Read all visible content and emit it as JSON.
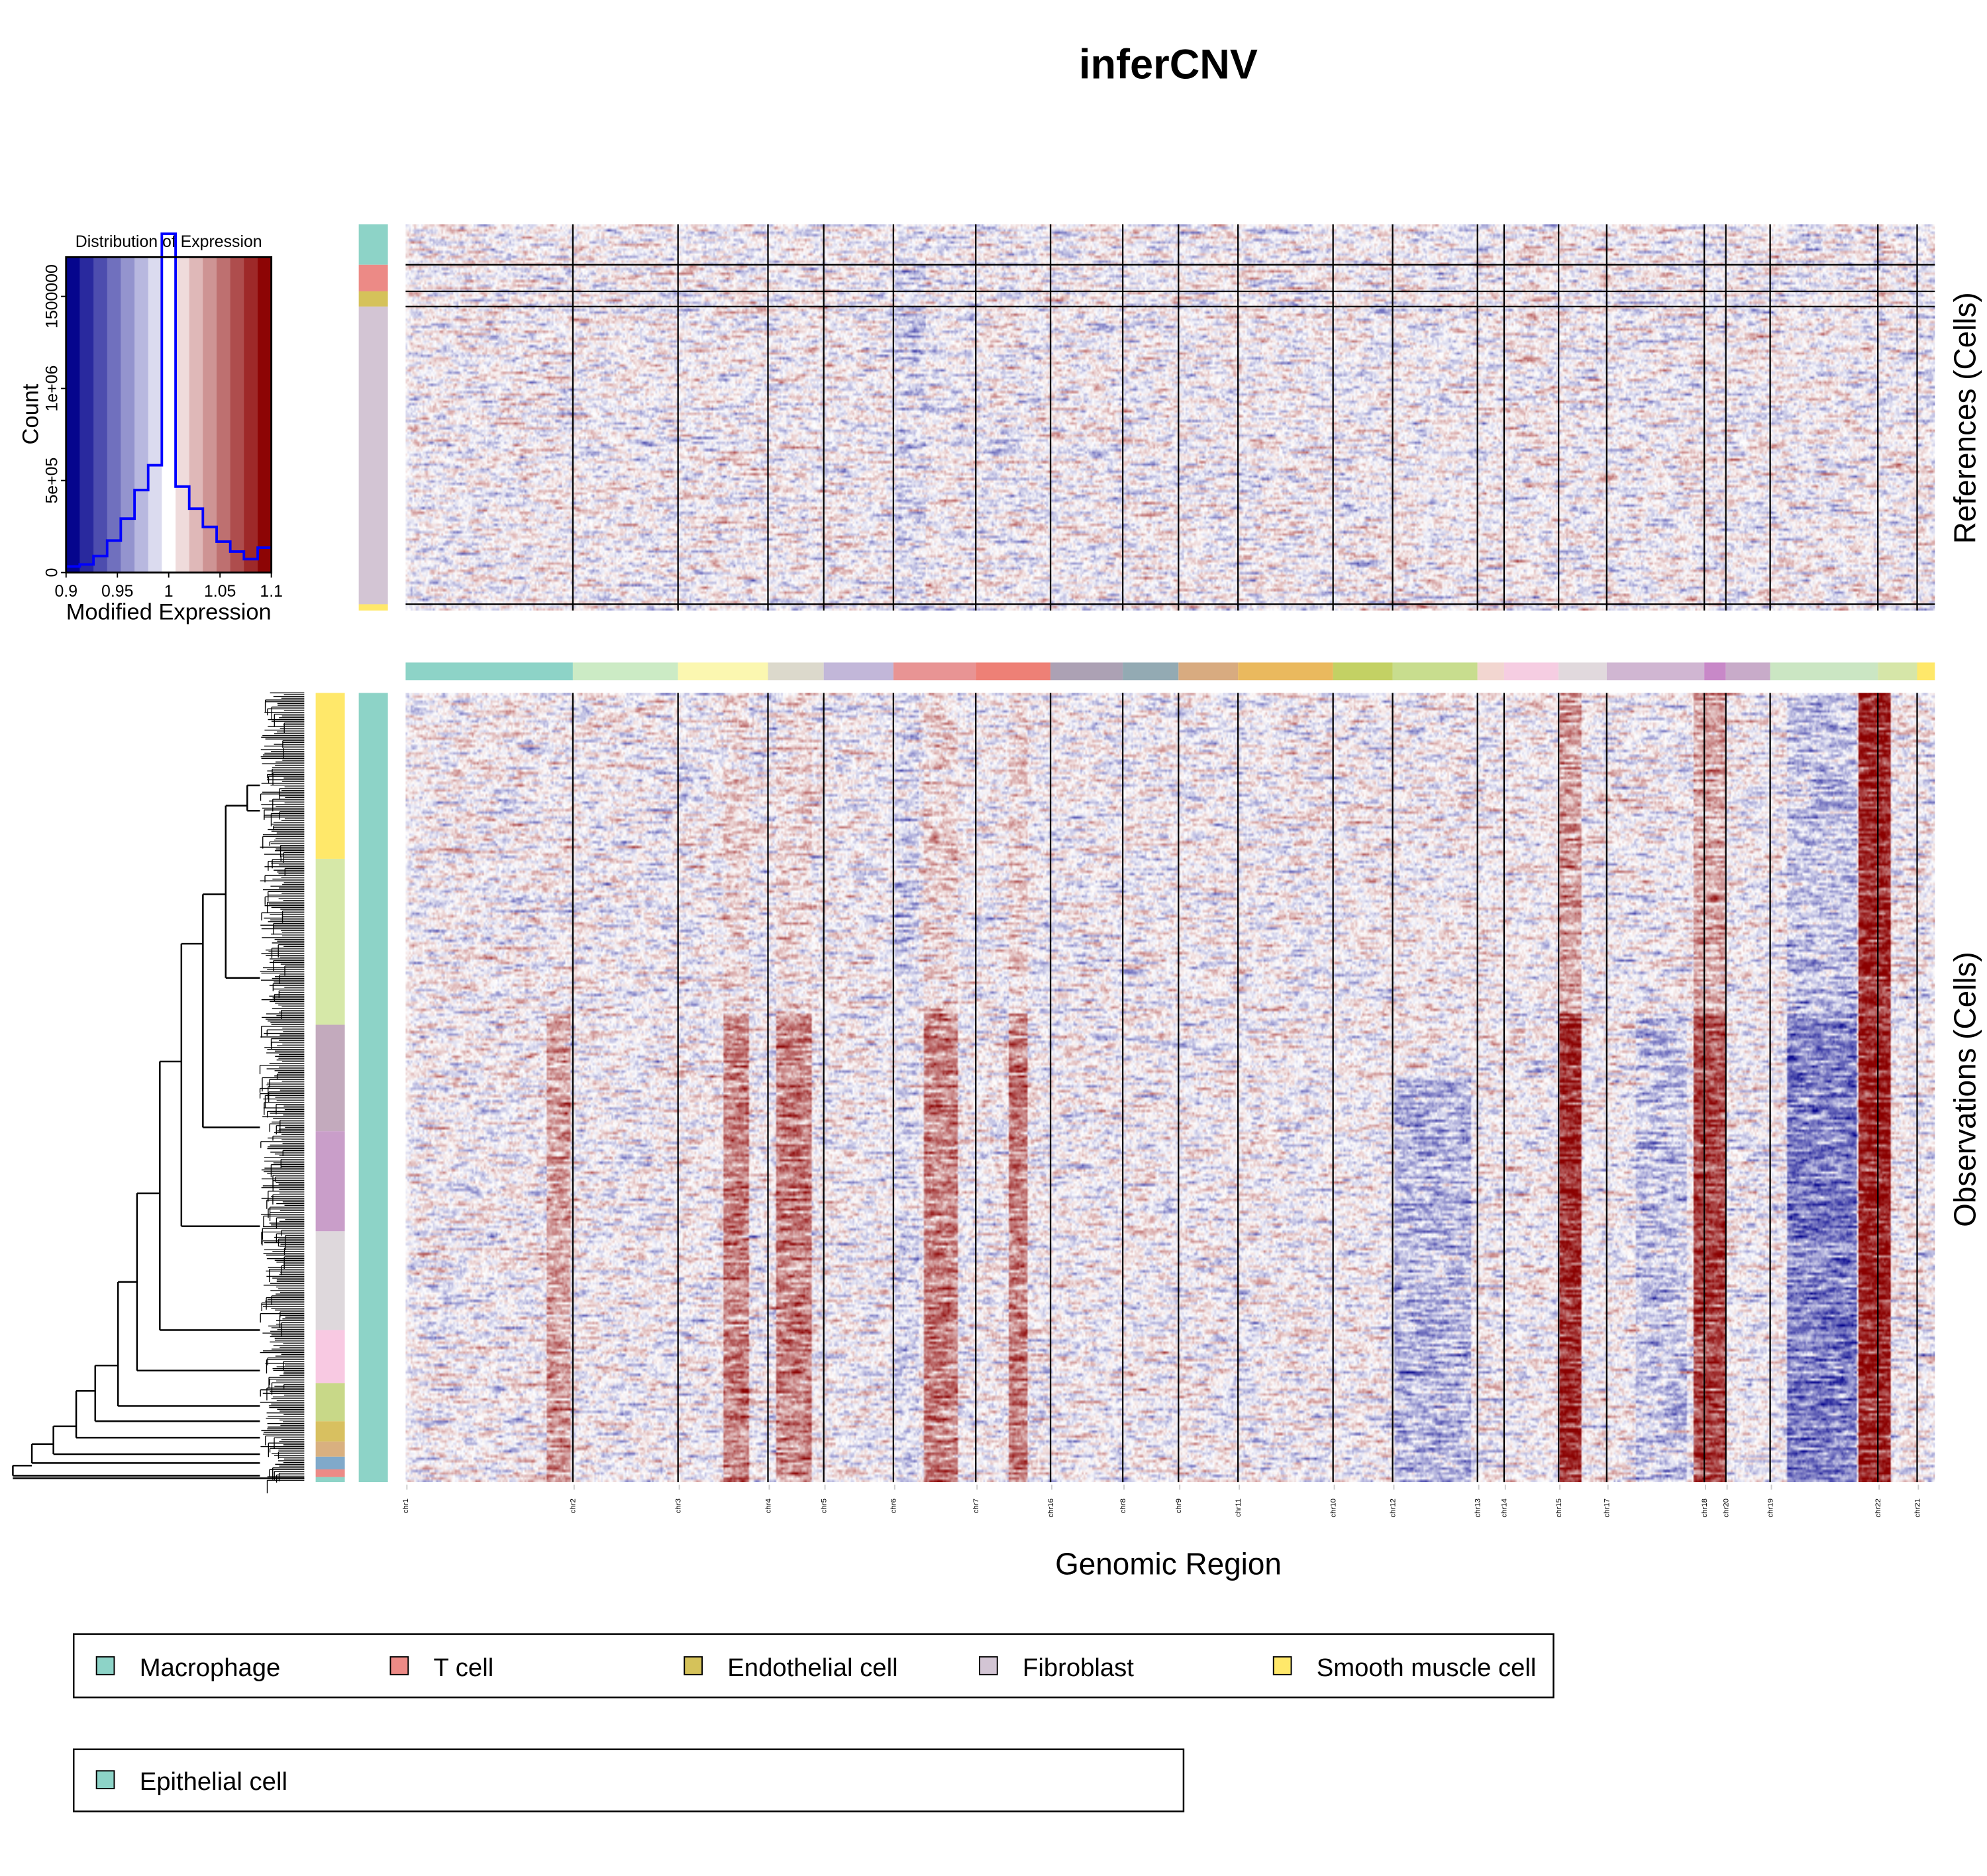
{
  "title": "inferCNV",
  "xlabel": "Genomic Region",
  "references_label": "References (Cells)",
  "observations_label": "Observations (Cells)",
  "colors": {
    "low": "#00008b",
    "mid": "#ffffff",
    "high": "#8b0000",
    "hist_line": "#0000ff"
  },
  "chart_data": {
    "type": "heatmap",
    "histogram": {
      "type": "bar",
      "title": "Distribution of Expression",
      "xlabel": "Modified Expression",
      "ylabel": "Count",
      "xlim": [
        0.9,
        1.1
      ],
      "ylim": [
        0,
        2000000
      ],
      "xticks": [
        "0.9",
        "0.95",
        "1",
        "1.05",
        "1.1"
      ],
      "yticks": [
        "0",
        "5e+05",
        "1e+06",
        "1500000"
      ],
      "bin_edges": [
        0.9,
        0.9133,
        0.9267,
        0.94,
        0.9533,
        0.9667,
        0.98,
        0.9933,
        1.0067,
        1.02,
        1.0333,
        1.0467,
        1.06,
        1.0733,
        1.0867,
        1.1
      ],
      "counts": [
        33000,
        44000,
        90000,
        174000,
        293000,
        448000,
        583000,
        1840000,
        467000,
        347000,
        248000,
        168000,
        114000,
        73000,
        135000
      ]
    },
    "chromosomes": [
      {
        "label": "chr1",
        "color": "#8dd3c7"
      },
      {
        "label": "chr2",
        "color": "#ccebc5"
      },
      {
        "label": "chr3",
        "color": "#fbf7b0"
      },
      {
        "label": "chr4",
        "color": "#dcd9cc"
      },
      {
        "label": "chr5",
        "color": "#c2b7d9"
      },
      {
        "label": "chr6",
        "color": "#e89494"
      },
      {
        "label": "chr7",
        "color": "#ee8076"
      },
      {
        "label": "chr16",
        "color": "#aca1b4"
      },
      {
        "label": "chr8",
        "color": "#93aab3"
      },
      {
        "label": "chr9",
        "color": "#d8ab80"
      },
      {
        "label": "chr11",
        "color": "#eab95e"
      },
      {
        "label": "chr10",
        "color": "#c3d164"
      },
      {
        "label": "chr12",
        "color": "#c8dd8e"
      },
      {
        "label": "chr13",
        "color": "#f2d6d0"
      },
      {
        "label": "chr14",
        "color": "#f6cde2"
      },
      {
        "label": "chr15",
        "color": "#e1d9dd"
      },
      {
        "label": "chr17",
        "color": "#d0b6d2"
      },
      {
        "label": "chr18",
        "color": "#c888c8"
      },
      {
        "label": "chr20",
        "color": "#c8abc9"
      },
      {
        "label": "chr19",
        "color": "#cbe6c3"
      },
      {
        "label": "chr22",
        "color": "#d6e6a8"
      },
      {
        "label": "chr21",
        "color": "#ffe86a"
      }
    ],
    "reference_groups": [
      "Macrophage",
      "T cell",
      "Endothelial cell",
      "Fibroblast",
      "Smooth muscle cell"
    ],
    "observation_groups": [
      "Epithelial cell"
    ]
  },
  "legend": {
    "references": [
      {
        "label": "Macrophage",
        "color": "#8dd3c7"
      },
      {
        "label": "T cell",
        "color": "#ec8a86"
      },
      {
        "label": "Endothelial cell",
        "color": "#d5c25a"
      },
      {
        "label": "Fibroblast",
        "color": "#d3c5d4"
      },
      {
        "label": "Smooth muscle cell",
        "color": "#ffe86a"
      }
    ],
    "observations": [
      {
        "label": "Epithelial cell",
        "color": "#8dd3c7"
      }
    ]
  },
  "cluster_colors": [
    "#ffe86a",
    "#d6e8a8",
    "#c3aabd",
    "#c99ec9",
    "#ded8dc",
    "#f8c9e2",
    "#c8d888",
    "#d8c060",
    "#d9b080",
    "#80a9ca",
    "#ec8a86",
    "#8dd3c7"
  ]
}
